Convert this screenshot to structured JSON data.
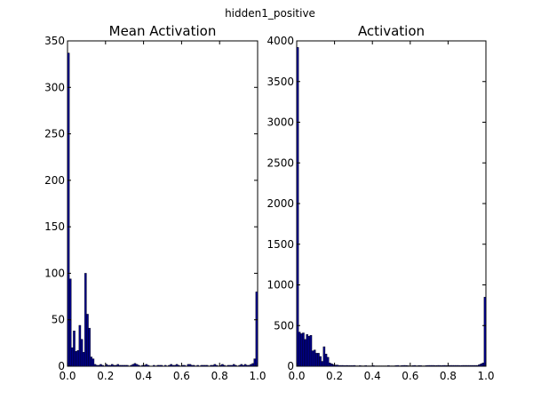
{
  "figure_title": "hidden1_positive",
  "colors": {
    "bar_fill": "#00008b",
    "bar_edge": "#000000",
    "background": "#ffffff"
  },
  "chart_data": [
    {
      "type": "bar",
      "title": "Mean Activation",
      "xlabel": "",
      "ylabel": "",
      "xlim": [
        0.0,
        1.0
      ],
      "ylim": [
        0,
        350
      ],
      "x_ticks": [
        0.0,
        0.2,
        0.4,
        0.6,
        0.8,
        1.0
      ],
      "x_tick_labels": [
        "0.0",
        "0.2",
        "0.4",
        "0.6",
        "0.8",
        "1.0"
      ],
      "y_ticks": [
        0,
        50,
        100,
        150,
        200,
        250,
        300,
        350
      ],
      "y_tick_labels": [
        "0",
        "50",
        "100",
        "150",
        "200",
        "250",
        "300",
        "350"
      ],
      "bin_width": 0.01,
      "bin_starts": [
        0.0,
        0.01,
        0.02,
        0.03,
        0.04,
        0.05,
        0.06,
        0.07,
        0.08,
        0.09,
        0.1,
        0.11,
        0.12,
        0.13,
        0.14,
        0.15,
        0.16,
        0.17,
        0.18,
        0.19,
        0.2,
        0.21,
        0.22,
        0.23,
        0.24,
        0.25,
        0.26,
        0.27,
        0.28,
        0.29,
        0.3,
        0.31,
        0.32,
        0.33,
        0.34,
        0.35,
        0.36,
        0.37,
        0.38,
        0.39,
        0.4,
        0.41,
        0.42,
        0.43,
        0.44,
        0.45,
        0.46,
        0.47,
        0.48,
        0.49,
        0.5,
        0.51,
        0.52,
        0.53,
        0.54,
        0.55,
        0.56,
        0.57,
        0.58,
        0.59,
        0.6,
        0.61,
        0.62,
        0.63,
        0.64,
        0.65,
        0.66,
        0.67,
        0.68,
        0.69,
        0.7,
        0.71,
        0.72,
        0.73,
        0.74,
        0.75,
        0.76,
        0.77,
        0.78,
        0.79,
        0.8,
        0.81,
        0.82,
        0.83,
        0.84,
        0.85,
        0.86,
        0.87,
        0.88,
        0.89,
        0.9,
        0.91,
        0.92,
        0.93,
        0.94,
        0.95,
        0.96,
        0.97,
        0.98,
        0.99
      ],
      "values": [
        337,
        94,
        20,
        38,
        16,
        17,
        44,
        29,
        15,
        100,
        56,
        41,
        10,
        8,
        2,
        1,
        1,
        2,
        1,
        0,
        2,
        1,
        1,
        2,
        1,
        1,
        2,
        1,
        1,
        1,
        1,
        1,
        0,
        1,
        2,
        3,
        2,
        1,
        0,
        1,
        1,
        2,
        1,
        0,
        0,
        1,
        0,
        1,
        1,
        1,
        0,
        1,
        0,
        1,
        2,
        1,
        1,
        2,
        1,
        0,
        1,
        1,
        0,
        2,
        2,
        1,
        1,
        0,
        1,
        0,
        1,
        1,
        1,
        1,
        0,
        1,
        1,
        2,
        1,
        0,
        1,
        2,
        1,
        0,
        1,
        1,
        1,
        2,
        1,
        0,
        1,
        2,
        1,
        2,
        1,
        1,
        2,
        3,
        8,
        80
      ]
    },
    {
      "type": "bar",
      "title": "Activation",
      "xlabel": "",
      "ylabel": "",
      "xlim": [
        0.0,
        1.0
      ],
      "ylim": [
        0,
        4000
      ],
      "x_ticks": [
        0.0,
        0.2,
        0.4,
        0.6,
        0.8,
        1.0
      ],
      "x_tick_labels": [
        "0.0",
        "0.2",
        "0.4",
        "0.6",
        "0.8",
        "1.0"
      ],
      "y_ticks": [
        0,
        500,
        1000,
        1500,
        2000,
        2500,
        3000,
        3500,
        4000
      ],
      "y_tick_labels": [
        "0",
        "500",
        "1000",
        "1500",
        "2000",
        "2500",
        "3000",
        "3500",
        "4000"
      ],
      "bin_width": 0.01,
      "bin_starts": [
        0.0,
        0.01,
        0.02,
        0.03,
        0.04,
        0.05,
        0.06,
        0.07,
        0.08,
        0.09,
        0.1,
        0.11,
        0.12,
        0.13,
        0.14,
        0.15,
        0.16,
        0.17,
        0.18,
        0.19,
        0.2,
        0.21,
        0.22,
        0.23,
        0.24,
        0.25,
        0.26,
        0.27,
        0.28,
        0.29,
        0.3,
        0.31,
        0.32,
        0.33,
        0.34,
        0.35,
        0.36,
        0.37,
        0.38,
        0.39,
        0.4,
        0.41,
        0.42,
        0.43,
        0.44,
        0.45,
        0.46,
        0.47,
        0.48,
        0.49,
        0.5,
        0.51,
        0.52,
        0.53,
        0.54,
        0.55,
        0.56,
        0.57,
        0.58,
        0.59,
        0.6,
        0.61,
        0.62,
        0.63,
        0.64,
        0.65,
        0.66,
        0.67,
        0.68,
        0.69,
        0.7,
        0.71,
        0.72,
        0.73,
        0.74,
        0.75,
        0.76,
        0.77,
        0.78,
        0.79,
        0.8,
        0.81,
        0.82,
        0.83,
        0.84,
        0.85,
        0.86,
        0.87,
        0.88,
        0.89,
        0.9,
        0.91,
        0.92,
        0.93,
        0.94,
        0.95,
        0.96,
        0.97,
        0.98,
        0.99
      ],
      "values": [
        3920,
        420,
        400,
        410,
        330,
        390,
        370,
        380,
        190,
        200,
        160,
        160,
        120,
        60,
        240,
        150,
        110,
        40,
        30,
        20,
        15,
        15,
        10,
        10,
        10,
        8,
        10,
        8,
        8,
        8,
        10,
        5,
        5,
        8,
        5,
        5,
        8,
        5,
        5,
        5,
        8,
        5,
        5,
        5,
        5,
        5,
        5,
        5,
        8,
        5,
        5,
        5,
        8,
        10,
        5,
        8,
        10,
        10,
        8,
        5,
        5,
        8,
        10,
        5,
        8,
        8,
        5,
        5,
        8,
        10,
        10,
        10,
        10,
        8,
        10,
        10,
        8,
        10,
        10,
        8,
        10,
        10,
        10,
        10,
        10,
        10,
        8,
        10,
        10,
        10,
        10,
        10,
        10,
        10,
        10,
        10,
        20,
        30,
        40,
        850
      ]
    }
  ]
}
